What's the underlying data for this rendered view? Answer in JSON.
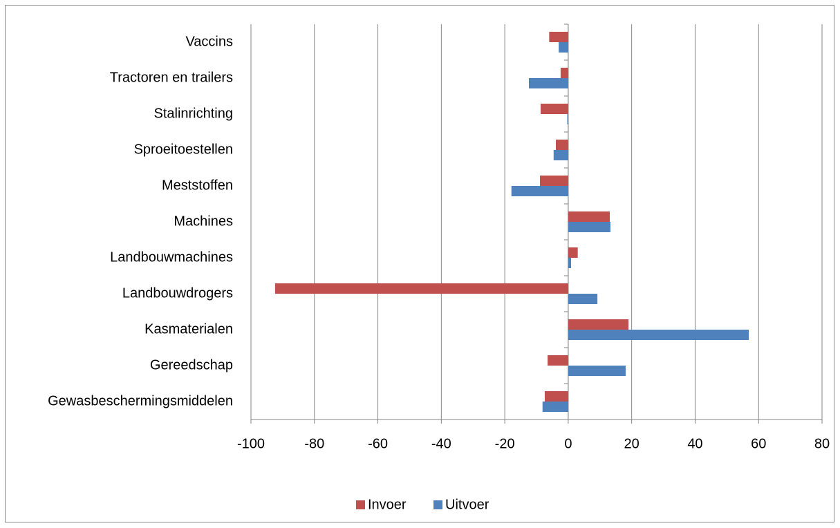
{
  "chart_data": {
    "type": "hbar",
    "categories": [
      "Vaccins",
      "Tractoren en trailers",
      "Stalinrichting",
      "Sproeitoestellen",
      "Meststoffen",
      "Machines",
      "Landbouwmachines",
      "Landbouwdrogers",
      "Kasmaterialen",
      "Gereedschap",
      "Gewasbeschermingsmiddelen"
    ],
    "series": [
      {
        "name": "Invoer",
        "color": "#c0504d",
        "values": [
          -6,
          -2.4,
          -8.7,
          -3.9,
          -8.9,
          13.1,
          3,
          -92.4,
          19,
          -6.5,
          -7.4
        ]
      },
      {
        "name": "Uitvoer",
        "color": "#4f81bd",
        "values": [
          -3,
          -12.4,
          -0.3,
          -4.6,
          -17.9,
          13.3,
          0.9,
          9.2,
          56.9,
          18.1,
          -8.1
        ]
      }
    ],
    "xlim": [
      -100,
      80
    ],
    "xticks": [
      -100,
      -80,
      -60,
      -40,
      -20,
      0,
      20,
      40,
      60,
      80
    ],
    "grid": true,
    "legend": "bottom"
  }
}
